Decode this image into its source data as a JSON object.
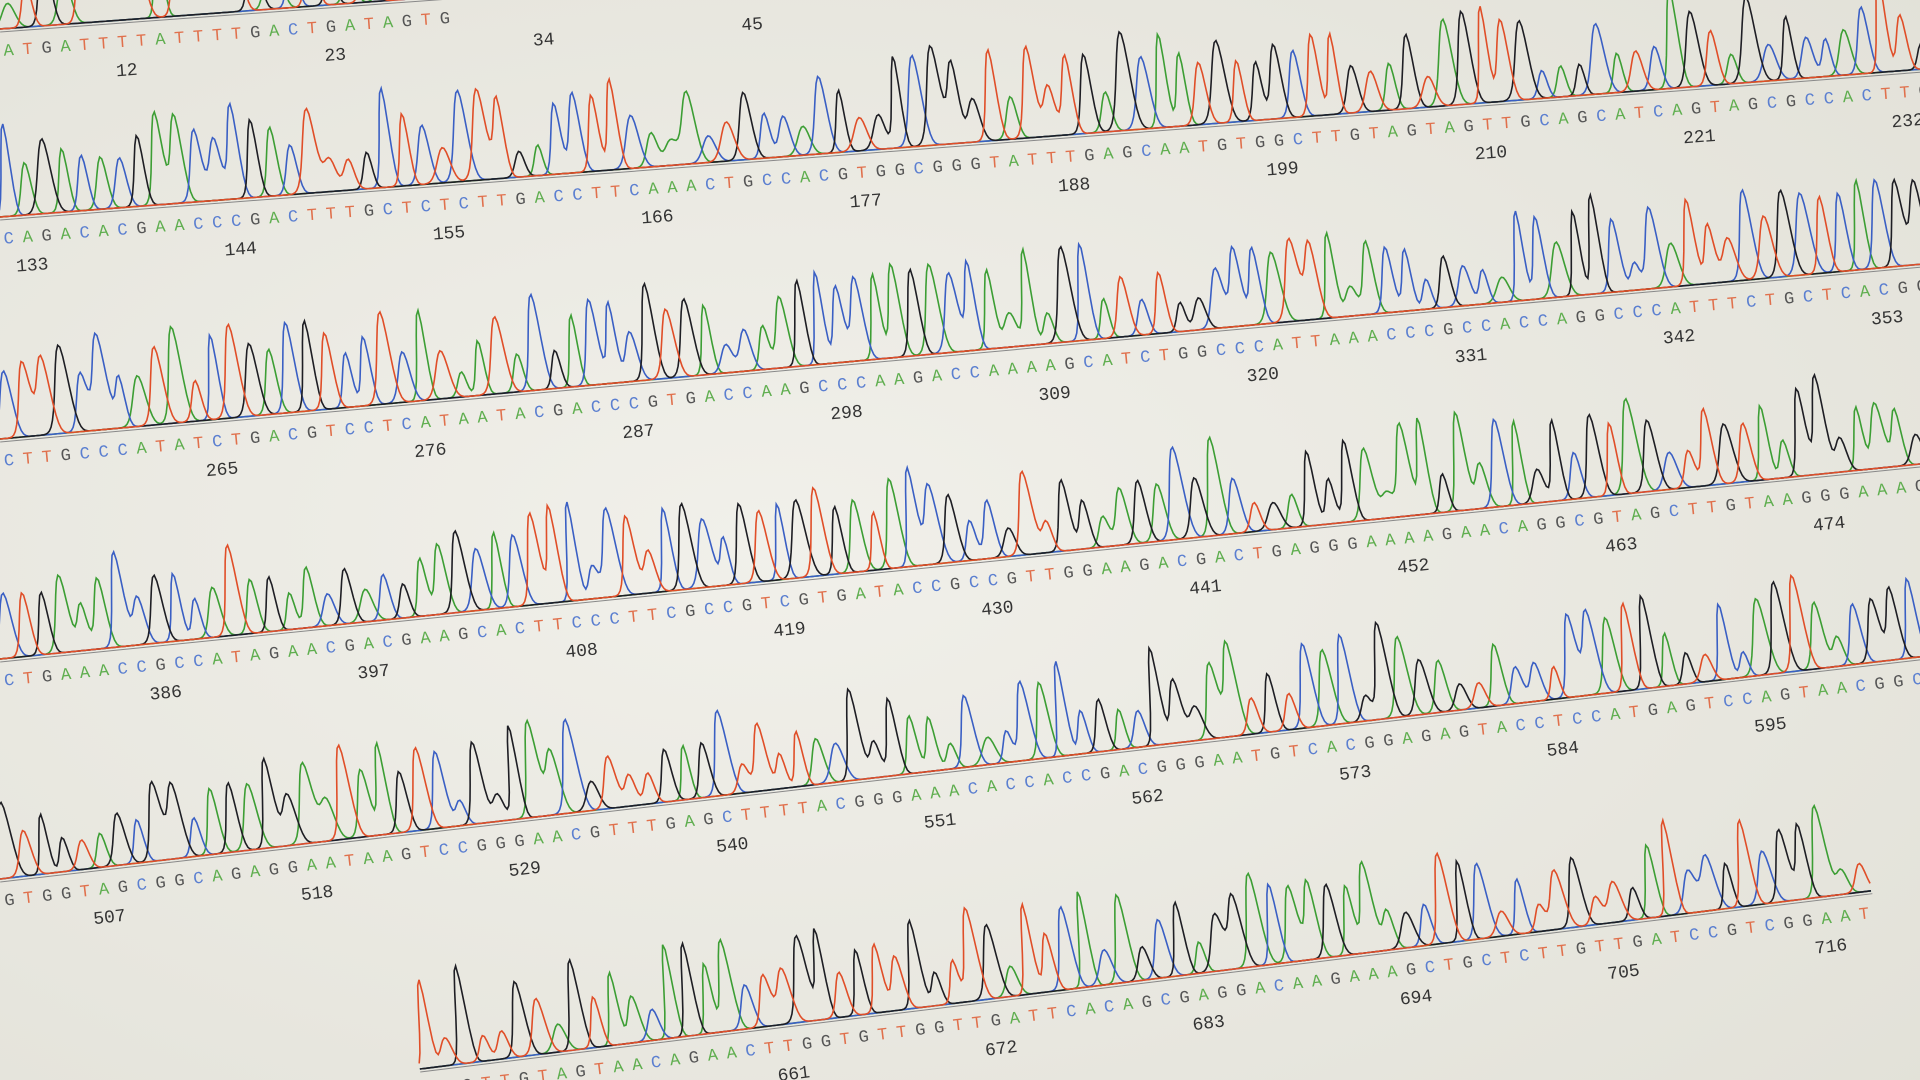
{
  "rows": [
    {
      "sequence": "ATGATTTTATTTTGACTGATAGTG",
      "positions": [
        12,
        23,
        34,
        45
      ]
    },
    {
      "sequence": "CAGACACGAACCCGACTTTGCTCTCTTGACCTTCAAACTGCCACGTGGCGGGTATTTGAGCAATGTGGCTTGTAGTAGTTGCAGCATCAGTAGCGCCACTTGAAAACGGC",
      "positions": [
        133,
        144,
        155,
        166,
        177,
        188,
        199,
        210,
        221,
        232
      ]
    },
    {
      "sequence": "CTTGCCCATATCTGACGTCCTCATAATACGACCCGTGACCAAGCCCAAGACCAAAAGCATCTGGCCCATTAAACCCGCCACCAGGCCCATTTCTGCTCACGGCGGCGTT",
      "positions": [
        265,
        276,
        287,
        298,
        309,
        320,
        331,
        342,
        353
      ]
    },
    {
      "sequence": "CTGAAACCGCCATAGAACGACGAAGCACTTCCCTTCGCCGTCGTGATACCGCCGTTGGAAGACGACTGAGGGAAAAGAACAGGCGTAGCTTGTAAGGGAAAGTTCC",
      "positions": [
        386,
        397,
        408,
        419,
        430,
        441,
        452,
        463,
        474
      ]
    },
    {
      "sequence": "GTGGTAGCGGCAGAGGAATAAGTCCGGGAACGTTTGAGCTTTTACGGGAAACACCACCGACGGGAATGTCACGGAGAGTACCTCCATGAGTCCAGTAACGGC",
      "positions": [
        507,
        518,
        529,
        540,
        551,
        562,
        573,
        584,
        595
      ]
    },
    {
      "sequence": "TTGTTGTAGTAACAGAACTTGGTGTTGGTTGATTCACAGCGAGGACAAGAAAGCTGCTCTTGTTGATCCGTCGGAAT",
      "positions": [
        661,
        672,
        683,
        694,
        705,
        716
      ]
    }
  ]
}
